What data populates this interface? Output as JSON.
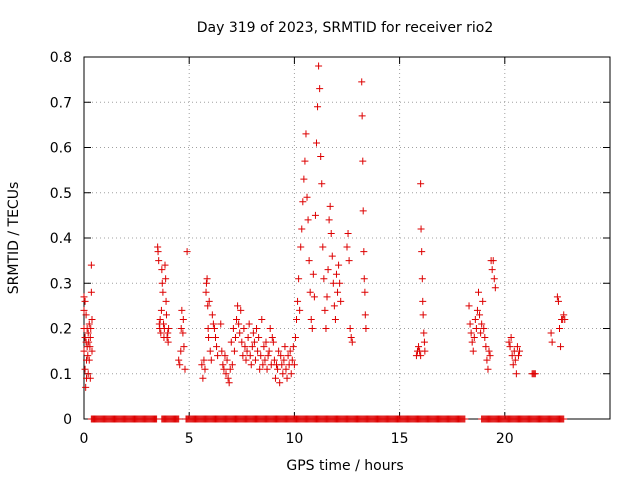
{
  "chart_data": {
    "type": "scatter",
    "title": "Day 319 of 2023, SRMTID for receiver rio2",
    "xlabel": "GPS time / hours",
    "ylabel": "SRMTID / TECUs",
    "xlim": [
      0,
      25
    ],
    "ylim": [
      0,
      0.8
    ],
    "xticks": [
      0,
      5,
      10,
      15,
      20
    ],
    "yticks": [
      0,
      0.1,
      0.2,
      0.3,
      0.4,
      0.5,
      0.6,
      0.7,
      0.8
    ],
    "xtick_labels": [
      "0",
      "5",
      "10",
      "15",
      "20"
    ],
    "ytick_labels": [
      "0",
      "0.1",
      "0.2",
      "0.3",
      "0.4",
      "0.5",
      "0.6",
      "0.7",
      "0.8"
    ],
    "grid": true,
    "marker": "+",
    "color": "#dd0000",
    "series": [
      {
        "name": "SRMTID",
        "points": [
          [
            0.0,
            0.27
          ],
          [
            0.0,
            0.24
          ],
          [
            0.0,
            0.2
          ],
          [
            0.0,
            0.15
          ],
          [
            0.05,
            0.26
          ],
          [
            0.05,
            0.18
          ],
          [
            0.05,
            0.11
          ],
          [
            0.08,
            0.07
          ],
          [
            0.1,
            0.23
          ],
          [
            0.1,
            0.17
          ],
          [
            0.12,
            0.13
          ],
          [
            0.12,
            0.09
          ],
          [
            0.15,
            0.2
          ],
          [
            0.15,
            0.16
          ],
          [
            0.18,
            0.14
          ],
          [
            0.2,
            0.19
          ],
          [
            0.2,
            0.1
          ],
          [
            0.22,
            0.17
          ],
          [
            0.25,
            0.21
          ],
          [
            0.25,
            0.13
          ],
          [
            0.28,
            0.16
          ],
          [
            0.3,
            0.09
          ],
          [
            0.3,
            0.18
          ],
          [
            0.32,
            0.2
          ],
          [
            0.35,
            0.34
          ],
          [
            0.35,
            0.28
          ],
          [
            0.38,
            0.22
          ],
          [
            0.38,
            0.15
          ],
          [
            3.5,
            0.38
          ],
          [
            3.52,
            0.37
          ],
          [
            3.55,
            0.35
          ],
          [
            3.58,
            0.21
          ],
          [
            3.6,
            0.2
          ],
          [
            3.62,
            0.22
          ],
          [
            3.65,
            0.19
          ],
          [
            3.68,
            0.24
          ],
          [
            3.7,
            0.33
          ],
          [
            3.72,
            0.3
          ],
          [
            3.75,
            0.28
          ],
          [
            3.78,
            0.21
          ],
          [
            3.8,
            0.18
          ],
          [
            3.82,
            0.2
          ],
          [
            3.85,
            0.34
          ],
          [
            3.88,
            0.31
          ],
          [
            3.9,
            0.26
          ],
          [
            3.92,
            0.23
          ],
          [
            3.95,
            0.18
          ],
          [
            3.98,
            0.19
          ],
          [
            4.0,
            0.17
          ],
          [
            4.02,
            0.2
          ],
          [
            4.5,
            0.13
          ],
          [
            4.55,
            0.12
          ],
          [
            4.6,
            0.15
          ],
          [
            4.62,
            0.2
          ],
          [
            4.65,
            0.24
          ],
          [
            4.7,
            0.19
          ],
          [
            4.72,
            0.22
          ],
          [
            4.75,
            0.16
          ],
          [
            4.8,
            0.11
          ],
          [
            4.9,
            0.37
          ],
          [
            5.6,
            0.12
          ],
          [
            5.65,
            0.09
          ],
          [
            5.7,
            0.13
          ],
          [
            5.75,
            0.11
          ],
          [
            5.8,
            0.28
          ],
          [
            5.82,
            0.3
          ],
          [
            5.85,
            0.31
          ],
          [
            5.88,
            0.25
          ],
          [
            5.9,
            0.2
          ],
          [
            5.92,
            0.18
          ],
          [
            5.95,
            0.26
          ],
          [
            6.0,
            0.15
          ],
          [
            6.05,
            0.13
          ],
          [
            6.1,
            0.23
          ],
          [
            6.15,
            0.21
          ],
          [
            6.2,
            0.2
          ],
          [
            6.25,
            0.18
          ],
          [
            6.3,
            0.16
          ],
          [
            6.35,
            0.14
          ],
          [
            6.5,
            0.21
          ],
          [
            6.55,
            0.15
          ],
          [
            6.6,
            0.12
          ],
          [
            6.65,
            0.11
          ],
          [
            6.7,
            0.14
          ],
          [
            6.75,
            0.1
          ],
          [
            6.8,
            0.13
          ],
          [
            6.85,
            0.09
          ],
          [
            6.9,
            0.08
          ],
          [
            6.95,
            0.11
          ],
          [
            7.0,
            0.17
          ],
          [
            7.05,
            0.12
          ],
          [
            7.1,
            0.2
          ],
          [
            7.15,
            0.15
          ],
          [
            7.2,
            0.18
          ],
          [
            7.25,
            0.22
          ],
          [
            7.3,
            0.25
          ],
          [
            7.35,
            0.21
          ],
          [
            7.4,
            0.19
          ],
          [
            7.45,
            0.24
          ],
          [
            7.5,
            0.17
          ],
          [
            7.55,
            0.14
          ],
          [
            7.6,
            0.2
          ],
          [
            7.65,
            0.16
          ],
          [
            7.7,
            0.13
          ],
          [
            7.75,
            0.15
          ],
          [
            7.8,
            0.18
          ],
          [
            7.85,
            0.21
          ],
          [
            7.9,
            0.14
          ],
          [
            7.95,
            0.12
          ],
          [
            8.0,
            0.16
          ],
          [
            8.05,
            0.19
          ],
          [
            8.1,
            0.17
          ],
          [
            8.15,
            0.13
          ],
          [
            8.2,
            0.2
          ],
          [
            8.25,
            0.15
          ],
          [
            8.3,
            0.18
          ],
          [
            8.35,
            0.11
          ],
          [
            8.4,
            0.14
          ],
          [
            8.45,
            0.22
          ],
          [
            8.5,
            0.12
          ],
          [
            8.55,
            0.16
          ],
          [
            8.6,
            0.13
          ],
          [
            8.65,
            0.17
          ],
          [
            8.7,
            0.11
          ],
          [
            8.75,
            0.14
          ],
          [
            8.8,
            0.15
          ],
          [
            8.85,
            0.2
          ],
          [
            8.9,
            0.12
          ],
          [
            8.95,
            0.18
          ],
          [
            9.0,
            0.17
          ],
          [
            9.05,
            0.13
          ],
          [
            9.1,
            0.09
          ],
          [
            9.15,
            0.12
          ],
          [
            9.2,
            0.11
          ],
          [
            9.25,
            0.15
          ],
          [
            9.3,
            0.08
          ],
          [
            9.35,
            0.14
          ],
          [
            9.4,
            0.12
          ],
          [
            9.45,
            0.1
          ],
          [
            9.5,
            0.13
          ],
          [
            9.55,
            0.16
          ],
          [
            9.6,
            0.11
          ],
          [
            9.65,
            0.09
          ],
          [
            9.7,
            0.14
          ],
          [
            9.75,
            0.12
          ],
          [
            9.8,
            0.15
          ],
          [
            9.85,
            0.1
          ],
          [
            9.9,
            0.13
          ],
          [
            9.95,
            0.16
          ],
          [
            10.0,
            0.12
          ],
          [
            10.05,
            0.18
          ],
          [
            10.1,
            0.22
          ],
          [
            10.15,
            0.26
          ],
          [
            10.2,
            0.31
          ],
          [
            10.25,
            0.24
          ],
          [
            10.3,
            0.38
          ],
          [
            10.35,
            0.42
          ],
          [
            10.4,
            0.48
          ],
          [
            10.45,
            0.53
          ],
          [
            10.5,
            0.57
          ],
          [
            10.55,
            0.63
          ],
          [
            10.6,
            0.49
          ],
          [
            10.65,
            0.44
          ],
          [
            10.7,
            0.35
          ],
          [
            10.75,
            0.28
          ],
          [
            10.8,
            0.22
          ],
          [
            10.85,
            0.2
          ],
          [
            10.9,
            0.32
          ],
          [
            10.95,
            0.27
          ],
          [
            11.0,
            0.45
          ],
          [
            11.05,
            0.61
          ],
          [
            11.1,
            0.69
          ],
          [
            11.15,
            0.78
          ],
          [
            11.2,
            0.73
          ],
          [
            11.25,
            0.58
          ],
          [
            11.3,
            0.52
          ],
          [
            11.35,
            0.38
          ],
          [
            11.4,
            0.31
          ],
          [
            11.45,
            0.24
          ],
          [
            11.5,
            0.2
          ],
          [
            11.55,
            0.27
          ],
          [
            11.6,
            0.33
          ],
          [
            11.65,
            0.44
          ],
          [
            11.7,
            0.47
          ],
          [
            11.75,
            0.41
          ],
          [
            11.8,
            0.36
          ],
          [
            11.85,
            0.3
          ],
          [
            11.9,
            0.25
          ],
          [
            11.95,
            0.22
          ],
          [
            12.0,
            0.32
          ],
          [
            12.05,
            0.28
          ],
          [
            12.1,
            0.34
          ],
          [
            12.15,
            0.3
          ],
          [
            12.2,
            0.26
          ],
          [
            12.5,
            0.38
          ],
          [
            12.55,
            0.41
          ],
          [
            12.6,
            0.35
          ],
          [
            12.65,
            0.2
          ],
          [
            12.7,
            0.18
          ],
          [
            12.75,
            0.17
          ],
          [
            13.2,
            0.745
          ],
          [
            13.22,
            0.67
          ],
          [
            13.25,
            0.57
          ],
          [
            13.27,
            0.46
          ],
          [
            13.3,
            0.37
          ],
          [
            13.32,
            0.31
          ],
          [
            13.35,
            0.28
          ],
          [
            13.37,
            0.23
          ],
          [
            13.4,
            0.2
          ],
          [
            15.8,
            0.14
          ],
          [
            15.85,
            0.15
          ],
          [
            15.9,
            0.16
          ],
          [
            15.95,
            0.15
          ],
          [
            16.0,
            0.14
          ],
          [
            16.0,
            0.52
          ],
          [
            16.02,
            0.42
          ],
          [
            16.05,
            0.37
          ],
          [
            16.08,
            0.31
          ],
          [
            16.1,
            0.26
          ],
          [
            16.12,
            0.23
          ],
          [
            16.15,
            0.19
          ],
          [
            16.18,
            0.17
          ],
          [
            16.2,
            0.15
          ],
          [
            18.3,
            0.25
          ],
          [
            18.35,
            0.21
          ],
          [
            18.4,
            0.19
          ],
          [
            18.45,
            0.17
          ],
          [
            18.5,
            0.15
          ],
          [
            18.55,
            0.18
          ],
          [
            18.6,
            0.22
          ],
          [
            18.65,
            0.2
          ],
          [
            18.7,
            0.24
          ],
          [
            18.75,
            0.28
          ],
          [
            18.8,
            0.23
          ],
          [
            18.85,
            0.19
          ],
          [
            18.9,
            0.21
          ],
          [
            18.95,
            0.26
          ],
          [
            19.0,
            0.2
          ],
          [
            19.05,
            0.18
          ],
          [
            19.1,
            0.16
          ],
          [
            19.15,
            0.13
          ],
          [
            19.2,
            0.11
          ],
          [
            19.25,
            0.15
          ],
          [
            19.3,
            0.14
          ],
          [
            19.35,
            0.35
          ],
          [
            19.4,
            0.33
          ],
          [
            19.45,
            0.35
          ],
          [
            19.5,
            0.31
          ],
          [
            19.55,
            0.29
          ],
          [
            20.2,
            0.17
          ],
          [
            20.25,
            0.16
          ],
          [
            20.3,
            0.18
          ],
          [
            20.35,
            0.14
          ],
          [
            20.4,
            0.12
          ],
          [
            20.45,
            0.15
          ],
          [
            20.5,
            0.13
          ],
          [
            20.55,
            0.1
          ],
          [
            20.6,
            0.16
          ],
          [
            20.65,
            0.14
          ],
          [
            20.7,
            0.15
          ],
          [
            21.3,
            0.1
          ],
          [
            21.35,
            0.1
          ],
          [
            21.4,
            0.1
          ],
          [
            21.45,
            0.1
          ],
          [
            22.2,
            0.19
          ],
          [
            22.25,
            0.17
          ],
          [
            22.5,
            0.27
          ],
          [
            22.55,
            0.26
          ],
          [
            22.6,
            0.2
          ],
          [
            22.65,
            0.16
          ],
          [
            22.7,
            0.22
          ],
          [
            22.75,
            0.22
          ],
          [
            22.8,
            0.23
          ],
          [
            22.85,
            0.22
          ]
        ],
        "zero_segments": [
          [
            0.35,
            3.45
          ],
          [
            3.7,
            4.5
          ],
          [
            4.85,
            18.1
          ],
          [
            18.9,
            22.8
          ]
        ]
      }
    ]
  }
}
